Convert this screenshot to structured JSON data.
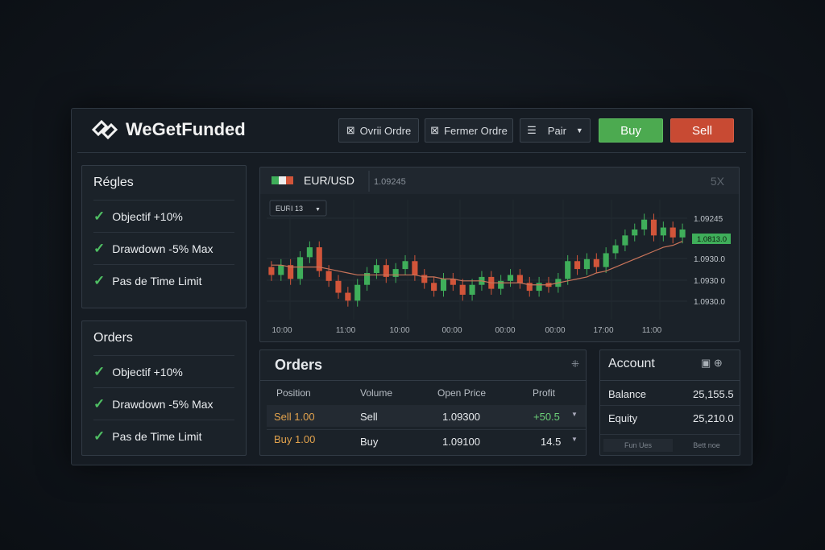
{
  "header": {
    "logo": "WeGetFunded",
    "buttons": [
      "Ovrii Ordre",
      "Fermer Ordre",
      "Pair",
      "Buy",
      "Sell"
    ]
  },
  "rules_panel": {
    "title": "Régles",
    "items": [
      "Objectif +10%",
      "Drawdown -5% Max",
      "Pas de Time Limit"
    ]
  },
  "orders_side_panel": {
    "title": "Orders",
    "items": [
      "Objectif +10%",
      "Drawdown -5% Max",
      "Pas de Time Limit"
    ]
  },
  "chart_panel": {
    "symbol": "EUR/USD",
    "price": "1.09245",
    "zoom": "5X",
    "timeframe": "EURI 13",
    "price_labels": [
      "1.09245",
      "1.0930.0",
      "1.0930 0",
      "1.0930.0"
    ],
    "current_price": "1.0813.0",
    "time_labels": [
      "10:00",
      "11:00",
      "10:00",
      "00:00",
      "00:00",
      "00:00",
      "17:00",
      "11:00"
    ]
  },
  "chart_data": {
    "type": "candlestick",
    "ylim": [
      1.088,
      1.0935
    ],
    "up_color": "#3fae5a",
    "down_color": "#d2553a",
    "ma_color": "#c9745a",
    "candles": [
      [
        1.0905,
        1.0908,
        1.0898,
        1.0901
      ],
      [
        1.0901,
        1.0909,
        1.0898,
        1.0906
      ],
      [
        1.0906,
        1.0909,
        1.0896,
        1.0899
      ],
      [
        1.0899,
        1.0913,
        1.0896,
        1.091
      ],
      [
        1.091,
        1.0918,
        1.0907,
        1.0915
      ],
      [
        1.0915,
        1.0918,
        1.09,
        1.0903
      ],
      [
        1.0903,
        1.0906,
        1.0895,
        1.0898
      ],
      [
        1.0898,
        1.0901,
        1.0889,
        1.0892
      ],
      [
        1.0892,
        1.0895,
        1.0885,
        1.0888
      ],
      [
        1.0888,
        1.0899,
        1.0885,
        1.0896
      ],
      [
        1.0896,
        1.0905,
        1.0893,
        1.0902
      ],
      [
        1.0902,
        1.0909,
        1.0899,
        1.0906
      ],
      [
        1.0906,
        1.0909,
        1.0897,
        1.09
      ],
      [
        1.09,
        1.0907,
        1.0897,
        1.0904
      ],
      [
        1.0904,
        1.0911,
        1.0901,
        1.0908
      ],
      [
        1.0908,
        1.0911,
        1.0898,
        1.0901
      ],
      [
        1.0901,
        1.0904,
        1.0894,
        1.0897
      ],
      [
        1.0897,
        1.09,
        1.089,
        1.0893
      ],
      [
        1.0893,
        1.0902,
        1.089,
        1.0899
      ],
      [
        1.0899,
        1.0902,
        1.0893,
        1.0896
      ],
      [
        1.0896,
        1.0899,
        1.0888,
        1.0891
      ],
      [
        1.0891,
        1.0899,
        1.0888,
        1.0896
      ],
      [
        1.0896,
        1.0903,
        1.0893,
        1.09
      ],
      [
        1.09,
        1.0903,
        1.0891,
        1.0894
      ],
      [
        1.0894,
        1.0901,
        1.0891,
        1.0898
      ],
      [
        1.0898,
        1.0904,
        1.0895,
        1.0901
      ],
      [
        1.0901,
        1.0904,
        1.0894,
        1.0897
      ],
      [
        1.0897,
        1.09,
        1.089,
        1.0893
      ],
      [
        1.0893,
        1.09,
        1.089,
        1.0897
      ],
      [
        1.0897,
        1.09,
        1.0892,
        1.0895
      ],
      [
        1.0895,
        1.0902,
        1.0892,
        1.0899
      ],
      [
        1.0899,
        1.0911,
        1.0896,
        1.0908
      ],
      [
        1.0908,
        1.0911,
        1.0901,
        1.0904
      ],
      [
        1.0904,
        1.0912,
        1.0901,
        1.0909
      ],
      [
        1.0909,
        1.0912,
        1.0902,
        1.0905
      ],
      [
        1.0905,
        1.0915,
        1.0902,
        1.0912
      ],
      [
        1.0912,
        1.0919,
        1.0909,
        1.0916
      ],
      [
        1.0916,
        1.0924,
        1.0913,
        1.0921
      ],
      [
        1.0921,
        1.0927,
        1.0918,
        1.0924
      ],
      [
        1.0924,
        1.0932,
        1.0921,
        1.0929
      ],
      [
        1.0929,
        1.0932,
        1.0918,
        1.0921
      ],
      [
        1.0921,
        1.0928,
        1.0918,
        1.0925
      ],
      [
        1.0925,
        1.0928,
        1.0917,
        1.092
      ],
      [
        1.092,
        1.0927,
        1.0917,
        1.0924
      ]
    ],
    "ma": [
      1.0906,
      1.0906,
      1.0905,
      1.0905,
      1.0905,
      1.0905,
      1.0904,
      1.0903,
      1.0902,
      1.0901,
      1.0901,
      1.0901,
      1.0901,
      1.0901,
      1.0901,
      1.0901,
      1.09,
      1.09,
      1.0899,
      1.0899,
      1.0898,
      1.0898,
      1.0898,
      1.0897,
      1.0897,
      1.0897,
      1.0897,
      1.0896,
      1.0896,
      1.0896,
      1.0897,
      1.0898,
      1.0899,
      1.09,
      1.0902,
      1.0903,
      1.0905,
      1.0907,
      1.0909,
      1.0911,
      1.0913,
      1.0915,
      1.0916,
      1.0918
    ]
  },
  "orders_table": {
    "title": "Orders",
    "columns": [
      "Position",
      "Volume",
      "Open Price",
      "Profit"
    ],
    "rows": [
      [
        "Sell 1.00",
        "Sell",
        "1.09300",
        "+50.5"
      ],
      [
        "Buy 1.00",
        "Buy",
        "1.09100",
        "14.5"
      ]
    ]
  },
  "account": {
    "title": "Account",
    "rows": [
      [
        "Balance",
        "25,155.5"
      ],
      [
        "Equity",
        "25,210.0"
      ]
    ],
    "buttons": [
      "Fun Ues",
      "Bett noe"
    ]
  }
}
